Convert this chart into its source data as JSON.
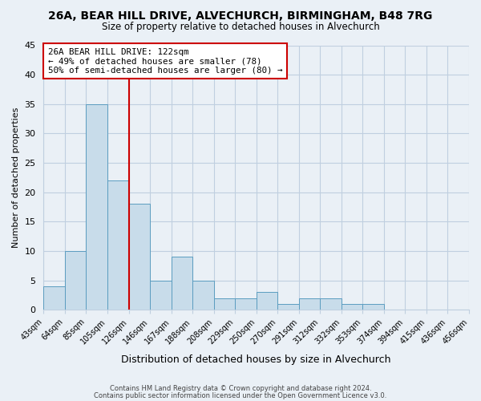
{
  "title": "26A, BEAR HILL DRIVE, ALVECHURCH, BIRMINGHAM, B48 7RG",
  "subtitle": "Size of property relative to detached houses in Alvechurch",
  "xlabel": "Distribution of detached houses by size in Alvechurch",
  "ylabel": "Number of detached properties",
  "bar_values": [
    4,
    10,
    35,
    22,
    18,
    5,
    9,
    5,
    2,
    2,
    3,
    1,
    2,
    2,
    1,
    1,
    0,
    0,
    0,
    0
  ],
  "tick_labels": [
    "43sqm",
    "64sqm",
    "85sqm",
    "105sqm",
    "126sqm",
    "146sqm",
    "167sqm",
    "188sqm",
    "208sqm",
    "229sqm",
    "250sqm",
    "270sqm",
    "291sqm",
    "312sqm",
    "332sqm",
    "353sqm",
    "374sqm",
    "394sqm",
    "415sqm",
    "436sqm",
    "456sqm"
  ],
  "bar_color": "#c8dcea",
  "bar_edge_color": "#5b9dc0",
  "vline_color": "#cc0000",
  "vline_x": 4,
  "annotation_title": "26A BEAR HILL DRIVE: 122sqm",
  "annotation_line1": "← 49% of detached houses are smaller (78)",
  "annotation_line2": "50% of semi-detached houses are larger (80) →",
  "ylim": [
    0,
    45
  ],
  "yticks": [
    0,
    5,
    10,
    15,
    20,
    25,
    30,
    35,
    40,
    45
  ],
  "footer1": "Contains HM Land Registry data © Crown copyright and database right 2024.",
  "footer2": "Contains public sector information licensed under the Open Government Licence v3.0.",
  "background_color": "#eaf0f6",
  "plot_bg_color": "#eaf0f6",
  "grid_color": "#c0cfe0",
  "title_fontsize": 10,
  "subtitle_fontsize": 8.5,
  "ylabel_fontsize": 8,
  "xlabel_fontsize": 9
}
